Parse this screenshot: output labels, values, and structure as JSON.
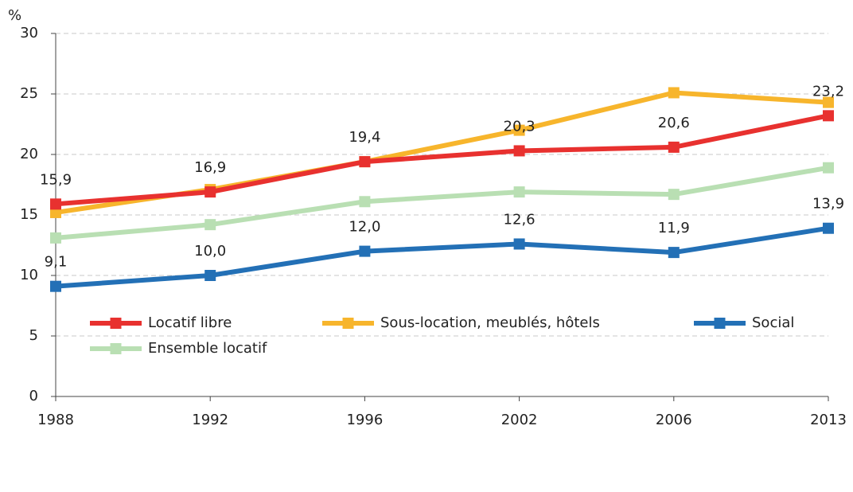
{
  "chart_data": {
    "type": "line",
    "y_label": "%",
    "categories": [
      "1988",
      "1992",
      "1996",
      "2002",
      "2006",
      "2013"
    ],
    "series": [
      {
        "name": "Locatif libre",
        "color": "#e8312f",
        "values": [
          15.9,
          16.9,
          19.4,
          20.3,
          20.6,
          23.2
        ],
        "value_labels": [
          "15,9",
          "16,9",
          "19,4",
          "20,3",
          "20,6",
          "23,2"
        ]
      },
      {
        "name": "Sous-location, meublés, hôtels",
        "color": "#f7b52c",
        "values": [
          15.2,
          17.1,
          19.4,
          22.0,
          25.1,
          24.3
        ]
      },
      {
        "name": "Social",
        "color": "#2370b6",
        "values": [
          9.1,
          10.0,
          12.0,
          12.6,
          11.9,
          13.9
        ],
        "value_labels": [
          "9,1",
          "10,0",
          "12,0",
          "12,6",
          "11,9",
          "13,9"
        ]
      },
      {
        "name": "Ensemble locatif",
        "color": "#b9dfb3",
        "values": [
          13.1,
          14.2,
          16.1,
          16.9,
          16.7,
          18.9
        ]
      }
    ],
    "ylim": [
      0,
      30
    ],
    "yticks": [
      0,
      5,
      10,
      15,
      20,
      25,
      30
    ],
    "grid": true
  }
}
